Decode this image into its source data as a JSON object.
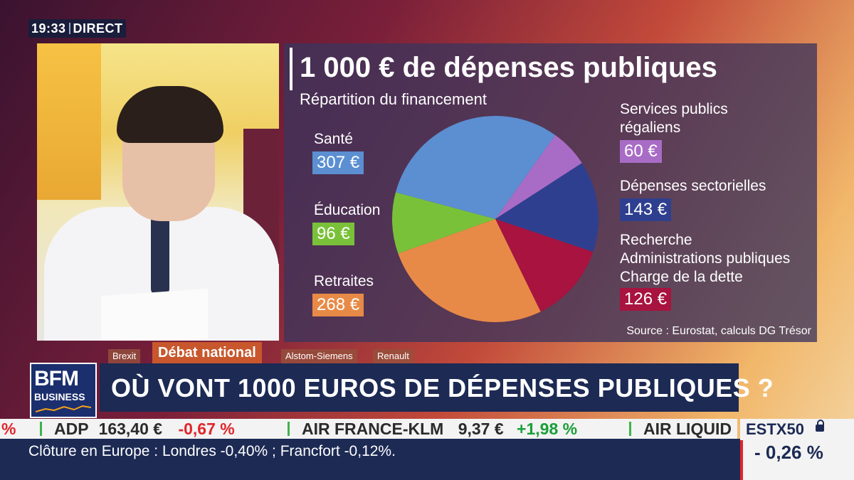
{
  "clock": {
    "time": "19:33",
    "status": "DIRECT"
  },
  "infographic": {
    "title": "1 000 € de dépenses publiques",
    "subtitle": "Répartition du financement",
    "source": "Source : Eurostat, calculs DG Trésor",
    "categories": [
      {
        "label": "Santé",
        "value": "307 €",
        "amount": 307,
        "color": "#5b8fd1"
      },
      {
        "label": "Éducation",
        "value": "96 €",
        "amount": 96,
        "color": "#7ac13a"
      },
      {
        "label": "Retraites",
        "value": "268 €",
        "amount": 268,
        "color": "#e88a47"
      },
      {
        "label": "Services publics\nrégaliens",
        "value": "60 €",
        "amount": 60,
        "color": "#a86cc6"
      },
      {
        "label": "Dépenses sectorielles",
        "value": "143 €",
        "amount": 143,
        "color": "#2f3f8f"
      },
      {
        "label": "Recherche\nAdministrations publiques\nCharge de la dette",
        "value": "126 €",
        "amount": 126,
        "color": "#a8133f"
      }
    ],
    "pie_order": [
      0,
      3,
      4,
      5,
      2,
      1
    ]
  },
  "tags": {
    "brexit": "Brexit",
    "active": "Débat national",
    "alstom": "Alstom-Siemens",
    "renault": "Renault"
  },
  "headline": "OÙ VONT 1000 EUROS DE DÉPENSES PUBLIQUES ?",
  "logo": {
    "line1": "BFM",
    "line2": "BUSINESS"
  },
  "ticker": {
    "first_change": "%",
    "stock1": {
      "symbol": "ADP",
      "price": "163,40 €",
      "change": "-0,67 %"
    },
    "stock2": {
      "symbol": "AIR FRANCE-KLM",
      "price": "9,37 €",
      "change": "+1,98 %"
    },
    "stock3": {
      "symbol": "AIR LIQUID"
    }
  },
  "index": {
    "name": "ESTX50",
    "value": "- 0,26 %"
  },
  "bottom_text": "Clôture en Europe : Londres -0,40% ; Francfort -0,12%."
}
